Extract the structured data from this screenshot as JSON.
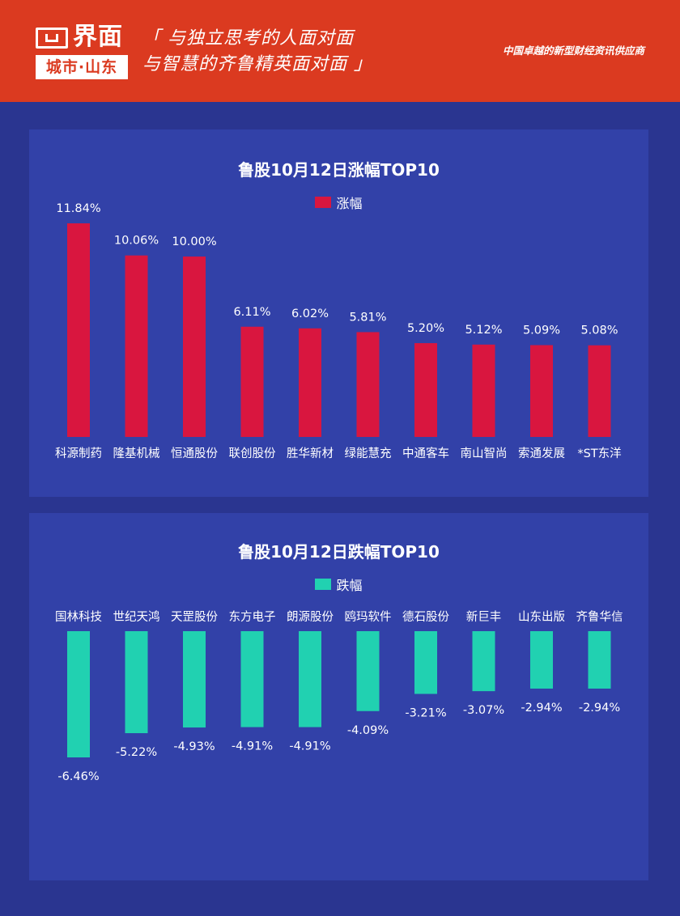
{
  "header": {
    "logo_name": "界面",
    "logo_sub": "城市·山东",
    "slogan_line1": "「 与独立思考的人面对面",
    "slogan_line2": "与智慧的齐鲁精英面对面 」",
    "tagline": "中国卓越的新型财经资讯供应商"
  },
  "colors": {
    "header_bg": "#db3a20",
    "gain": "#d9163f",
    "loss": "#21d1b1",
    "panel_bg": "#3241a8",
    "page_bg": "#2a3590"
  },
  "chart_data": [
    {
      "type": "bar",
      "title": "鲁股10月12日涨幅TOP10",
      "legend": "涨幅",
      "categories": [
        "科源制药",
        "隆基机械",
        "恒通股份",
        "联创股份",
        "胜华新材",
        "绿能慧充",
        "中通客车",
        "南山智尚",
        "索通发展",
        "*ST东洋"
      ],
      "values": [
        11.84,
        10.06,
        10.0,
        6.11,
        6.02,
        5.81,
        5.2,
        5.12,
        5.09,
        5.08
      ],
      "labels": [
        "11.84%",
        "10.06%",
        "10.00%",
        "6.11%",
        "6.02%",
        "5.81%",
        "5.20%",
        "5.12%",
        "5.09%",
        "5.08%"
      ],
      "color": "#d9163f"
    },
    {
      "type": "bar",
      "title": "鲁股10月12日跌幅TOP10",
      "legend": "跌幅",
      "categories": [
        "国林科技",
        "世纪天鸿",
        "天罡股份",
        "东方电子",
        "朗源股份",
        "鸥玛软件",
        "德石股份",
        "新巨丰",
        "山东出版",
        "齐鲁华信"
      ],
      "values": [
        -6.46,
        -5.22,
        -4.93,
        -4.91,
        -4.91,
        -4.09,
        -3.21,
        -3.07,
        -2.94,
        -2.94
      ],
      "labels": [
        "-6.46%",
        "-5.22%",
        "-4.93%",
        "-4.91%",
        "-4.91%",
        "-4.09%",
        "-3.21%",
        "-3.07%",
        "-2.94%",
        "-2.94%"
      ],
      "color": "#21d1b1"
    }
  ]
}
